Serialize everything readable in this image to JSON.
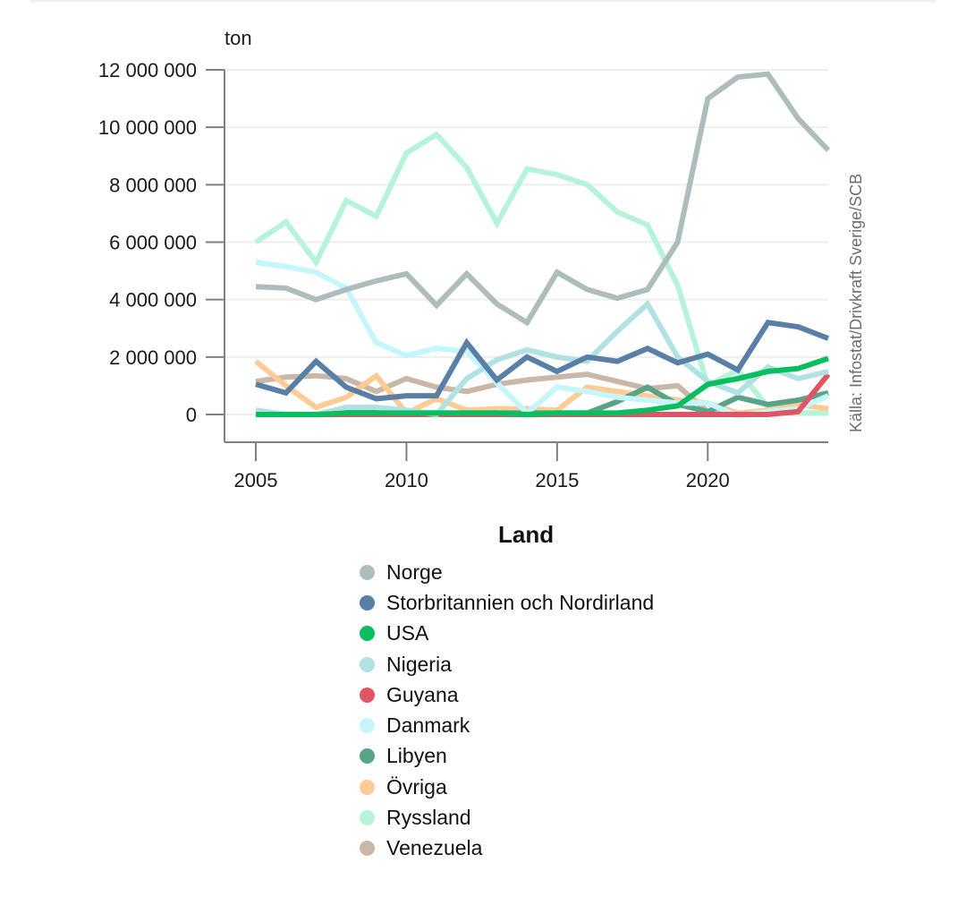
{
  "chart_data": {
    "type": "line",
    "title": "",
    "xlabel": "",
    "ylabel": "ton",
    "source": "Källa: Infostat/Drivkraft Sverige/SCB",
    "x": [
      2005,
      2006,
      2007,
      2008,
      2009,
      2010,
      2011,
      2012,
      2013,
      2014,
      2015,
      2016,
      2017,
      2018,
      2019,
      2020,
      2021,
      2022,
      2023,
      2024
    ],
    "xlim": [
      2005,
      2024
    ],
    "ylim": [
      -1000000,
      12000000
    ],
    "x_ticks": [
      2005,
      2010,
      2015,
      2020
    ],
    "x_tick_labels": [
      "2005",
      "2010",
      "2015",
      "2020"
    ],
    "y_ticks": [
      0,
      2000000,
      4000000,
      6000000,
      8000000,
      10000000,
      12000000
    ],
    "y_tick_labels": [
      "0",
      "2 000 000",
      "4 000 000",
      "6 000 000",
      "8 000 000",
      "10 000 000",
      "12 000 000"
    ],
    "grid": "horizontal",
    "legend_title": "Land",
    "legend_position": "bottom",
    "series": [
      {
        "name": "Norge",
        "color": "#adbdbc",
        "values": [
          4450000,
          4400000,
          4000000,
          4350000,
          4650000,
          4900000,
          3800000,
          4900000,
          3850000,
          3200000,
          4950000,
          4350000,
          4050000,
          4350000,
          6000000,
          11000000,
          11750000,
          11850000,
          10300000,
          9200000
        ]
      },
      {
        "name": "Storbritannien och Nordirland",
        "color": "#5a7fa7",
        "values": [
          1050000,
          750000,
          1850000,
          950000,
          550000,
          650000,
          650000,
          2500000,
          1200000,
          2000000,
          1500000,
          2000000,
          1850000,
          2300000,
          1800000,
          2100000,
          1550000,
          3200000,
          3050000,
          2650000
        ]
      },
      {
        "name": "USA",
        "color": "#08be5f",
        "values": [
          0,
          0,
          0,
          50000,
          50000,
          50000,
          50000,
          50000,
          50000,
          0,
          50000,
          50000,
          50000,
          150000,
          300000,
          1050000,
          1250000,
          1500000,
          1600000,
          1950000
        ]
      },
      {
        "name": "Nigeria",
        "color": "#b0e1e3",
        "values": [
          150000,
          0,
          0,
          250000,
          250000,
          150000,
          0,
          1250000,
          1900000,
          2250000,
          2000000,
          1850000,
          2900000,
          3850000,
          2000000,
          1150000,
          750000,
          1650000,
          1250000,
          1500000
        ]
      },
      {
        "name": "Guyana",
        "color": "#e05565",
        "values": [
          0,
          0,
          0,
          0,
          0,
          0,
          0,
          0,
          0,
          0,
          0,
          0,
          0,
          0,
          0,
          0,
          0,
          0,
          100000,
          1400000
        ]
      },
      {
        "name": "Danmark",
        "color": "#c5f6fb",
        "values": [
          5300000,
          5150000,
          4950000,
          4400000,
          2500000,
          2050000,
          2300000,
          2200000,
          1100000,
          50000,
          950000,
          800000,
          600000,
          500000,
          400000,
          400000,
          -50000,
          100000,
          200000,
          650000
        ]
      },
      {
        "name": "Libyen",
        "color": "#5aa387",
        "values": [
          0,
          0,
          0,
          150000,
          150000,
          50000,
          50000,
          50000,
          50000,
          50000,
          50000,
          50000,
          450000,
          950000,
          350000,
          100000,
          600000,
          350000,
          500000,
          750000
        ]
      },
      {
        "name": "Övriga",
        "color": "#fdcb95",
        "values": [
          1850000,
          1000000,
          250000,
          600000,
          1350000,
          50000,
          550000,
          150000,
          200000,
          200000,
          150000,
          950000,
          800000,
          650000,
          500000,
          400000,
          50000,
          150000,
          350000,
          200000
        ]
      },
      {
        "name": "Ryssland",
        "color": "#b5f4d9",
        "values": [
          6000000,
          6700000,
          5300000,
          7450000,
          6900000,
          9100000,
          9750000,
          8600000,
          6650000,
          8550000,
          8350000,
          8000000,
          7050000,
          6600000,
          4500000,
          1000000,
          1550000,
          250000,
          50000,
          50000
        ]
      },
      {
        "name": "Venezuela",
        "color": "#c9b8a8",
        "values": [
          1150000,
          1300000,
          1350000,
          1250000,
          800000,
          1250000,
          950000,
          800000,
          1050000,
          1200000,
          1300000,
          1400000,
          1150000,
          900000,
          1000000,
          100000,
          50000,
          50000,
          50000,
          50000
        ]
      }
    ]
  }
}
